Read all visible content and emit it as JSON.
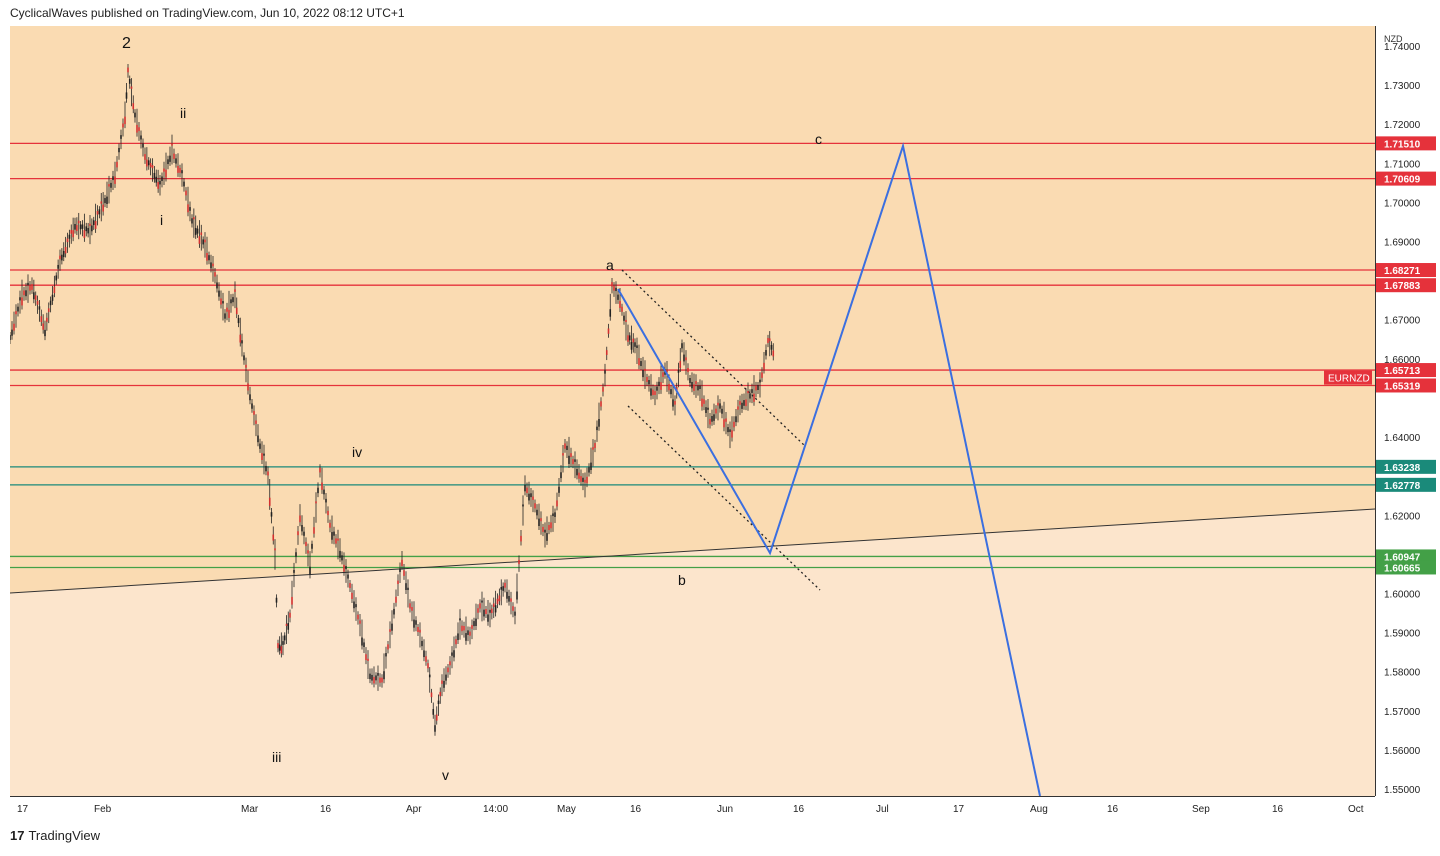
{
  "header": {
    "publish_text": "CyclicalWaves published on TradingView.com, Jun 10, 2022 08:12 UTC+1"
  },
  "footer": {
    "logo_glyph": "17",
    "brand": "TradingView"
  },
  "chart_data": {
    "type": "line",
    "currency_label": "NZD",
    "symbol_tag": "EURNZD",
    "ylim": [
      1.55,
      1.74
    ],
    "y_ticks": [
      "1.74000",
      "1.73000",
      "1.72000",
      "1.71000",
      "1.70000",
      "1.69000",
      "1.67000",
      "1.66000",
      "1.64000",
      "1.62000",
      "1.60000",
      "1.59000",
      "1.58000",
      "1.57000",
      "1.56000",
      "1.55000"
    ],
    "x_ticks": [
      "17",
      "Feb",
      "Mar",
      "16",
      "Apr",
      "14:00",
      "May",
      "16",
      "Jun",
      "16",
      "Jul",
      "17",
      "Aug",
      "16",
      "Sep",
      "16",
      "Oct"
    ],
    "levels": [
      {
        "label": "1.71510",
        "value": 1.7151,
        "color": "#e5323b"
      },
      {
        "label": "1.70609",
        "value": 1.70609,
        "color": "#e5323b"
      },
      {
        "label": "1.68271",
        "value": 1.68271,
        "color": "#e5323b"
      },
      {
        "label": "1.67883",
        "value": 1.67883,
        "color": "#e5323b"
      },
      {
        "label": "1.65713",
        "value": 1.65713,
        "color": "#e5323b"
      },
      {
        "label": "1.65319",
        "value": 1.65319,
        "color": "#e5323b"
      },
      {
        "label": "1.63238",
        "value": 1.63238,
        "color": "#1a8a7a"
      },
      {
        "label": "1.62778",
        "value": 1.62778,
        "color": "#1a8a7a"
      },
      {
        "label": "1.60947",
        "value": 1.60947,
        "color": "#43a047"
      },
      {
        "label": "1.60665",
        "value": 1.60665,
        "color": "#43a047"
      }
    ],
    "wave_labels": [
      "2",
      "ii",
      "i",
      "iii",
      "iv",
      "v",
      "a",
      "b",
      "c"
    ],
    "colors": {
      "bg_upper": "#fadbb2",
      "bg_lower": "#fce5cc",
      "candle": "#d32f2f",
      "projection": "#3b6fe0",
      "trendline": "#333333"
    }
  }
}
